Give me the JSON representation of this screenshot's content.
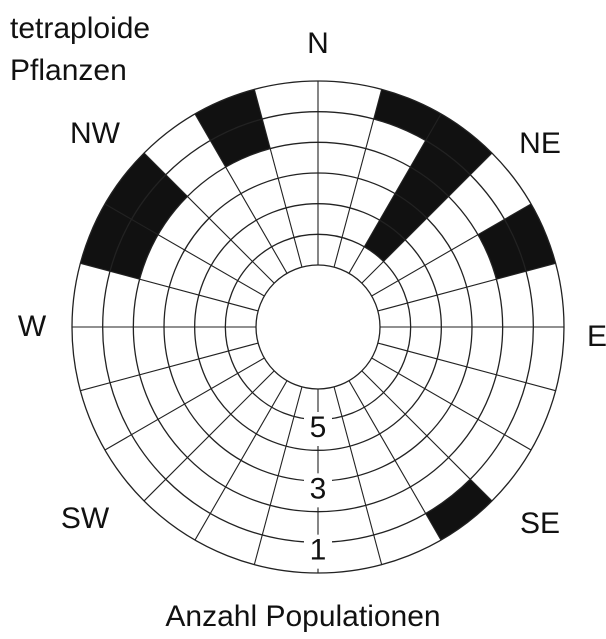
{
  "chart_data": {
    "type": "rose",
    "title": [
      "tetraploide",
      "Pflanzen"
    ],
    "xlabel": "Anzahl Populationen",
    "directions": [
      "N",
      "NE",
      "E",
      "SE",
      "SW",
      "W",
      "NW"
    ],
    "values": [
      0,
      1,
      5,
      0,
      2,
      0,
      0,
      0,
      0,
      1,
      0,
      0,
      0,
      0,
      0,
      0,
      0,
      0,
      0,
      2,
      2,
      0,
      2,
      0
    ],
    "rlim": [
      0,
      6
    ],
    "rticks": [
      1,
      3,
      5
    ],
    "color": "#111111"
  }
}
